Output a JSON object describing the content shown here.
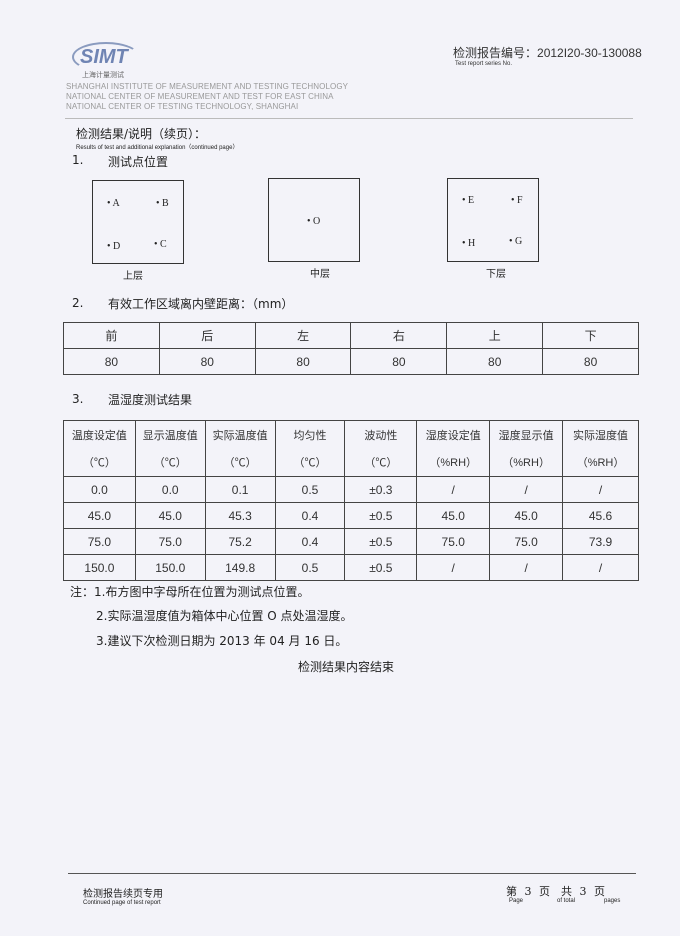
{
  "header": {
    "logo_text": "SIMT",
    "logo_sub": "上海计量测试",
    "report_no_label": "检测报告编号：",
    "report_no": "2012I20-30-130088",
    "report_no_en": "Test report series No.",
    "institute": [
      "SHANGHAI INSTITUTE OF MEASUREMENT AND TESTING TECHNOLOGY",
      "NATIONAL CENTER OF MEASUREMENT AND TEST FOR EAST CHINA",
      "NATIONAL CENTER OF TESTING TECHNOLOGY, SHANGHAI"
    ]
  },
  "title": "检测结果/说明（续页）：",
  "title_en": "Results of test and additional explanation（continued page）",
  "section1": {
    "num": "1.",
    "title": "测试点位置",
    "boxes": [
      {
        "label": "上层",
        "points": [
          "A",
          "B",
          "D",
          "C"
        ]
      },
      {
        "label": "中层",
        "points": [
          "O"
        ]
      },
      {
        "label": "下层",
        "points": [
          "E",
          "F",
          "H",
          "G"
        ]
      }
    ]
  },
  "section2": {
    "num": "2.",
    "title": "有效工作区域离内壁距离：（mm）",
    "headers": [
      "前",
      "后",
      "左",
      "右",
      "上",
      "下"
    ],
    "values": [
      "80",
      "80",
      "80",
      "80",
      "80",
      "80"
    ]
  },
  "section3": {
    "num": "3.",
    "title": "温湿度测试结果",
    "headers": [
      "温度设定值",
      "显示温度值",
      "实际温度值",
      "均匀性",
      "波动性",
      "湿度设定值",
      "湿度显示值",
      "实际湿度值"
    ],
    "units": [
      "（℃）",
      "（℃）",
      "（℃）",
      "（℃）",
      "（℃）",
      "（%RH）",
      "（%RH）",
      "（%RH）"
    ],
    "rows": [
      [
        "0.0",
        "0.0",
        "0.1",
        "0.5",
        "±0.3",
        "/",
        "/",
        "/"
      ],
      [
        "45.0",
        "45.0",
        "45.3",
        "0.4",
        "±0.5",
        "45.0",
        "45.0",
        "45.6"
      ],
      [
        "75.0",
        "75.0",
        "75.2",
        "0.4",
        "±0.5",
        "75.0",
        "75.0",
        "73.9"
      ],
      [
        "150.0",
        "150.0",
        "149.8",
        "0.5",
        "±0.5",
        "/",
        "/",
        "/"
      ]
    ]
  },
  "notes": [
    "注：1.布方图中字母所在位置为测试点位置。",
    "2.实际温湿度值为箱体中心位置 O 点处温湿度。",
    "3.建议下次检测日期为 2013 年 04 月 16 日。"
  ],
  "end": "检测结果内容结束",
  "footer": {
    "label": "检测报告续页专用",
    "label_en": "Continued page of test report",
    "page_prefix": "第",
    "page": "3",
    "page_mid": "页　共",
    "total": "3",
    "page_suffix": "页",
    "page_en": "Page",
    "total_en": "of total",
    "pages_en": "pages"
  }
}
